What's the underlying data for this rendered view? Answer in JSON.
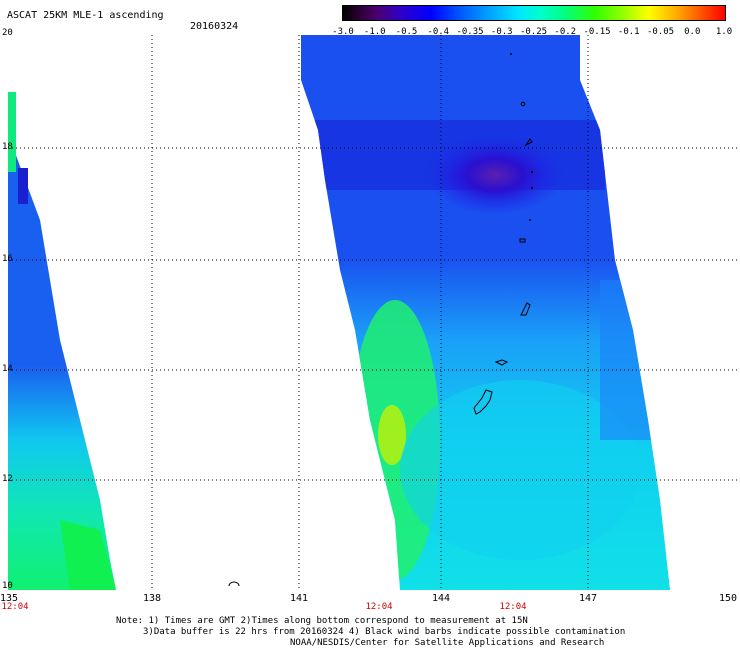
{
  "header": {
    "title": "ASCAT 25KM MLE-1 ascending",
    "date": "20160324"
  },
  "colorbar": {
    "labels": [
      "-3.0",
      "-1.0",
      "-0.5",
      "-0.4",
      "-0.35",
      "-0.3",
      "-0.25",
      "-0.2",
      "-0.15",
      "-0.1",
      "-0.05",
      "0.0",
      "1.0"
    ]
  },
  "axes": {
    "x_ticks": [
      "135",
      "138",
      "141",
      "144",
      "147",
      "150"
    ],
    "y_ticks": [
      "20",
      "18",
      "16",
      "14",
      "12",
      "10"
    ],
    "time_labels": [
      "12:04",
      "12:04",
      "12:04"
    ]
  },
  "notes": {
    "line1": "Note: 1) Times are GMT 2)Times along bottom correspond to measurement at 15N",
    "line2": "3)Data buffer is 22 hrs from 20160324 4) Black wind barbs indicate possible contamination",
    "line3": "NOAA/NESDIS/Center for Satellite Applications and Research"
  },
  "colors": {
    "deep_blue": "#1a10d0",
    "blue": "#1550f0",
    "light_blue": "#1a8cf8",
    "cyan": "#10d8f0",
    "aqua": "#10f0c0",
    "green": "#10f060",
    "yellow_green": "#a0f020"
  }
}
